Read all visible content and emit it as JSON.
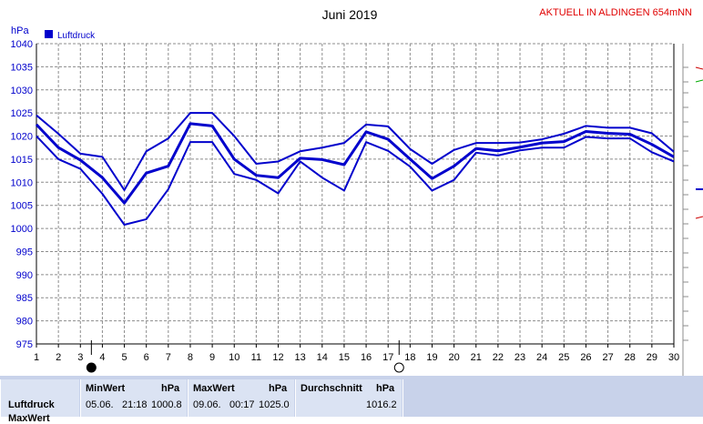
{
  "header": {
    "title": "Juni 2019",
    "station": "AKTUELL IN ALDINGEN 654mNN"
  },
  "colors": {
    "series": "#0000cc",
    "station_text": "#e00000",
    "grid": "#999999",
    "stats_bg": "#c8d2ea"
  },
  "chart_data": {
    "type": "line",
    "title": "Juni 2019",
    "ylabel": "hPa",
    "ylim": [
      975,
      1040
    ],
    "yticks": [
      975,
      980,
      985,
      990,
      995,
      1000,
      1005,
      1010,
      1015,
      1020,
      1025,
      1030,
      1035,
      1040
    ],
    "x": [
      1,
      2,
      3,
      4,
      5,
      6,
      7,
      8,
      9,
      10,
      11,
      12,
      13,
      14,
      15,
      16,
      17,
      18,
      19,
      20,
      21,
      22,
      23,
      24,
      25,
      26,
      27,
      28,
      29,
      30
    ],
    "grid": true,
    "legend": {
      "position": "top-left",
      "label": "Luftdruck"
    },
    "series": [
      {
        "name": "Luftdruck",
        "role": "max",
        "values": [
          1024.5,
          1020.5,
          1016.2,
          1015.5,
          1008.3,
          1016.7,
          1019.5,
          1025.0,
          1025.0,
          1020.0,
          1014.0,
          1014.5,
          1016.7,
          1017.5,
          1018.5,
          1022.5,
          1022.1,
          1017.2,
          1014.0,
          1017.0,
          1018.5,
          1018.5,
          1018.6,
          1019.3,
          1020.5,
          1022.2,
          1021.8,
          1021.8,
          1020.6,
          1016.6
        ]
      },
      {
        "name": "Luftdruck",
        "role": "mean",
        "values": [
          1022.5,
          1017.5,
          1014.8,
          1011.0,
          1005.5,
          1012.0,
          1013.5,
          1022.7,
          1022.2,
          1015.0,
          1011.5,
          1011.0,
          1015.2,
          1014.9,
          1013.8,
          1020.9,
          1019.3,
          1015.0,
          1010.8,
          1013.5,
          1017.3,
          1016.8,
          1017.6,
          1018.5,
          1018.8,
          1021.0,
          1020.6,
          1020.4,
          1018.2,
          1015.5
        ]
      },
      {
        "name": "Luftdruck",
        "role": "min",
        "values": [
          1020.0,
          1015.0,
          1012.9,
          1007.5,
          1000.8,
          1002.0,
          1008.5,
          1018.7,
          1018.7,
          1011.8,
          1010.5,
          1007.6,
          1014.5,
          1011.0,
          1008.2,
          1018.7,
          1016.8,
          1013.4,
          1008.2,
          1010.5,
          1016.4,
          1015.8,
          1016.9,
          1017.5,
          1017.5,
          1019.8,
          1019.5,
          1019.5,
          1016.5,
          1014.5
        ]
      }
    ],
    "markers": [
      {
        "type": "sun",
        "x": 3.5
      },
      {
        "type": "moon",
        "x": 17.5
      }
    ]
  },
  "stats": {
    "row_label": "Luftdruck",
    "row_label_cut": "MaxWert",
    "min": {
      "header": "MinWert",
      "unit": "hPa",
      "date": "05.06.",
      "time": "21:18",
      "value": "1000.8"
    },
    "max": {
      "header": "MaxWert",
      "unit": "hPa",
      "date": "09.06.",
      "time": "00:17",
      "value": "1025.0"
    },
    "avg": {
      "header": "Durchschnitt",
      "unit": "hPa",
      "value": "1016.2"
    }
  }
}
